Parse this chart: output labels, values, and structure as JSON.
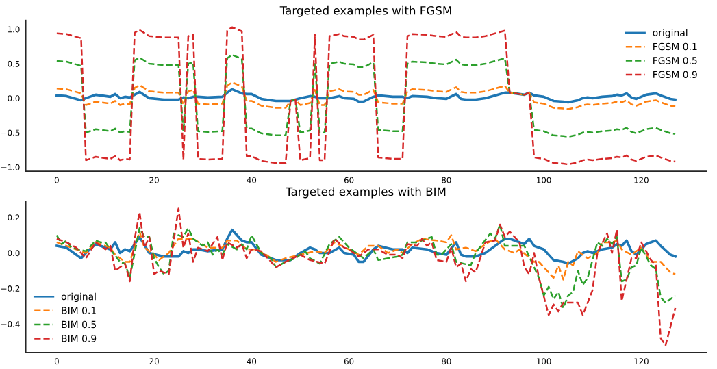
{
  "chart_data": [
    {
      "type": "line",
      "title": "Targeted examples with FGSM",
      "legend": "top right",
      "grid": false,
      "xlim": [
        -6.35,
        133.35
      ],
      "xticks": [
        0,
        20,
        40,
        60,
        80,
        100,
        120
      ],
      "ylim": [
        -1.06,
        1.13
      ],
      "yticks": [
        {
          "value": -1.0,
          "label": "−1.0"
        },
        {
          "value": -0.5,
          "label": "−0.5"
        },
        {
          "value": 0.0,
          "label": "0.0"
        },
        {
          "value": 0.5,
          "label": "0.5"
        },
        {
          "value": 1.0,
          "label": "1.0"
        }
      ],
      "x": [
        0,
        2,
        5,
        6,
        8,
        11,
        12,
        13,
        14,
        15,
        16,
        17,
        19,
        22,
        25,
        26,
        27,
        28,
        29,
        31,
        34,
        35,
        36,
        38,
        39,
        40,
        42,
        45,
        47,
        48,
        49,
        50,
        52,
        53,
        54,
        55,
        56,
        58,
        59,
        61,
        62,
        63,
        65,
        66,
        69,
        71,
        72,
        73,
        76,
        78,
        80,
        82,
        83,
        84,
        86,
        88,
        90,
        92,
        93,
        94,
        96,
        97,
        98,
        100,
        102,
        104,
        105,
        107,
        108,
        109,
        110,
        112,
        114,
        115,
        116,
        117,
        118,
        119,
        121,
        123,
        124,
        126,
        127
      ],
      "series": [
        {
          "name": "original",
          "color": "#1f77b4",
          "line_style": "solid",
          "values": [
            0.04,
            0.03,
            -0.03,
            0,
            0.05,
            0.02,
            0.06,
            0,
            0.02,
            0.01,
            0.05,
            0.09,
            0,
            -0.02,
            -0.02,
            0.01,
            0,
            0.02,
            0.02,
            0.01,
            0.02,
            0.08,
            0.13,
            0.07,
            0.06,
            0.06,
            -0.01,
            -0.04,
            -0.04,
            -0.04,
            -0.02,
            0,
            0.03,
            0.02,
            0,
            0,
            0,
            0.03,
            0,
            -0.01,
            -0.05,
            -0.05,
            0.02,
            0.04,
            0.02,
            0.02,
            0,
            0.03,
            0.02,
            0,
            -0.01,
            0.06,
            -0.01,
            -0.02,
            -0.02,
            0,
            0.04,
            0.08,
            0.08,
            0.07,
            0.05,
            0.08,
            0.04,
            0.02,
            -0.04,
            -0.05,
            -0.06,
            -0.03,
            0,
            0.01,
            0,
            0.02,
            0.03,
            0.05,
            0.04,
            0.07,
            0.01,
            -0.01,
            0.05,
            0.07,
            0.04,
            -0.01,
            -0.02
          ]
        },
        {
          "name": "FGSM 0.1",
          "color": "#ff7f0e",
          "line_style": "dashed",
          "values": [
            0.14,
            0.13,
            0.07,
            -0.1,
            -0.05,
            -0.08,
            -0.04,
            -0.1,
            -0.08,
            -0.09,
            0.15,
            0.19,
            0.1,
            0.08,
            0.08,
            -0.09,
            0.1,
            0.12,
            -0.08,
            -0.09,
            -0.08,
            0.18,
            0.23,
            0.17,
            -0.04,
            -0.04,
            -0.11,
            -0.14,
            -0.14,
            -0.04,
            -0.02,
            -0.1,
            -0.07,
            0.12,
            -0.1,
            -0.1,
            0.1,
            0.13,
            0.1,
            0.09,
            0.05,
            0.05,
            0.12,
            -0.06,
            -0.08,
            -0.08,
            0.1,
            0.13,
            0.12,
            0.1,
            0.09,
            0.16,
            0.09,
            0.08,
            0.08,
            0.1,
            0.14,
            0.18,
            0.08,
            0.07,
            0.05,
            0.08,
            -0.06,
            -0.08,
            -0.14,
            -0.15,
            -0.16,
            -0.13,
            -0.1,
            -0.09,
            -0.1,
            -0.08,
            -0.07,
            -0.05,
            -0.06,
            -0.03,
            -0.09,
            -0.11,
            -0.05,
            -0.03,
            -0.06,
            -0.11,
            -0.12
          ]
        },
        {
          "name": "FGSM 0.5",
          "color": "#2ca02c",
          "line_style": "dashed",
          "values": [
            0.54,
            0.53,
            0.47,
            -0.5,
            -0.45,
            -0.48,
            -0.44,
            -0.5,
            -0.48,
            -0.49,
            0.55,
            0.59,
            0.5,
            0.48,
            0.48,
            -0.49,
            0.5,
            0.52,
            -0.48,
            -0.49,
            -0.48,
            0.58,
            0.63,
            0.57,
            -0.44,
            -0.44,
            -0.51,
            -0.54,
            -0.54,
            -0.04,
            -0.02,
            -0.5,
            -0.47,
            0.52,
            -0.5,
            -0.5,
            0.5,
            0.53,
            0.5,
            0.49,
            0.45,
            0.45,
            0.52,
            -0.46,
            -0.48,
            -0.48,
            0.5,
            0.53,
            0.52,
            0.5,
            0.49,
            0.56,
            0.49,
            0.48,
            0.48,
            0.5,
            0.54,
            0.58,
            0.08,
            0.07,
            0.05,
            0.08,
            -0.46,
            -0.48,
            -0.54,
            -0.55,
            -0.56,
            -0.53,
            -0.5,
            -0.49,
            -0.5,
            -0.48,
            -0.47,
            -0.45,
            -0.46,
            -0.43,
            -0.49,
            -0.51,
            -0.45,
            -0.43,
            -0.46,
            -0.51,
            -0.52
          ]
        },
        {
          "name": "FGSM 0.9",
          "color": "#d62728",
          "line_style": "dashed",
          "values": [
            0.94,
            0.93,
            0.87,
            -0.9,
            -0.85,
            -0.88,
            -0.84,
            -0.9,
            -0.88,
            -0.89,
            0.95,
            0.99,
            0.9,
            0.88,
            0.88,
            -0.89,
            0.9,
            0.92,
            -0.88,
            -0.89,
            -0.88,
            0.98,
            1.03,
            0.97,
            -0.84,
            -0.84,
            -0.91,
            -0.94,
            -0.94,
            -0.04,
            -0.02,
            -0.9,
            -0.87,
            0.92,
            -0.9,
            -0.9,
            0.9,
            0.93,
            0.9,
            0.89,
            0.85,
            0.85,
            0.92,
            -0.86,
            -0.88,
            -0.88,
            0.9,
            0.93,
            0.92,
            0.9,
            0.89,
            0.96,
            0.89,
            0.88,
            0.88,
            0.9,
            0.94,
            0.98,
            0.08,
            0.07,
            0.05,
            0.08,
            -0.86,
            -0.88,
            -0.94,
            -0.95,
            -0.96,
            -0.93,
            -0.9,
            -0.89,
            -0.9,
            -0.88,
            -0.87,
            -0.85,
            -0.86,
            -0.83,
            -0.89,
            -0.91,
            -0.85,
            -0.83,
            -0.86,
            -0.91,
            -0.92
          ]
        }
      ]
    },
    {
      "type": "line",
      "title": "Targeted examples with BIM",
      "legend": "bottom left",
      "grid": false,
      "xlim": [
        -6.35,
        133.35
      ],
      "xticks": [
        0,
        20,
        40,
        60,
        80,
        100,
        120
      ],
      "ylim": [
        -0.56,
        0.29
      ],
      "yticks": [
        {
          "value": -0.4,
          "label": "−0.4"
        },
        {
          "value": -0.2,
          "label": "−0.2"
        },
        {
          "value": 0.0,
          "label": "0.0"
        },
        {
          "value": 0.2,
          "label": "0.2"
        }
      ],
      "series": [
        {
          "name": "original",
          "color": "#1f77b4",
          "line_style": "solid",
          "x": [
            0,
            2,
            5,
            6,
            8,
            11,
            12,
            13,
            14,
            15,
            16,
            17,
            19,
            22,
            25,
            26,
            27,
            28,
            29,
            31,
            34,
            35,
            36,
            38,
            39,
            40,
            42,
            45,
            47,
            48,
            49,
            50,
            52,
            53,
            54,
            55,
            56,
            58,
            59,
            61,
            62,
            63,
            65,
            66,
            69,
            71,
            72,
            73,
            76,
            78,
            80,
            82,
            83,
            84,
            86,
            88,
            90,
            92,
            93,
            94,
            96,
            97,
            98,
            100,
            102,
            104,
            105,
            107,
            108,
            109,
            110,
            112,
            114,
            115,
            116,
            117,
            118,
            119,
            121,
            123,
            124,
            126,
            127
          ],
          "values": [
            0.04,
            0.03,
            -0.03,
            0,
            0.05,
            0.02,
            0.06,
            0,
            0.02,
            0.01,
            0.05,
            0.09,
            0,
            -0.02,
            -0.02,
            0.01,
            0,
            0.02,
            0.02,
            0.01,
            0.02,
            0.08,
            0.13,
            0.07,
            0.06,
            0.06,
            -0.01,
            -0.04,
            -0.04,
            -0.04,
            -0.02,
            0,
            0.03,
            0.02,
            0,
            0,
            0,
            0.03,
            0,
            -0.01,
            -0.05,
            -0.05,
            0.02,
            0.04,
            0.02,
            0.02,
            0,
            0.03,
            0.02,
            0,
            -0.01,
            0.06,
            -0.01,
            -0.02,
            -0.02,
            0,
            0.04,
            0.08,
            0.08,
            0.07,
            0.05,
            0.08,
            0.04,
            0.02,
            -0.04,
            -0.05,
            -0.06,
            -0.03,
            0,
            0.01,
            0,
            0.02,
            0.03,
            0.05,
            0.04,
            0.07,
            0.01,
            -0.01,
            0.05,
            0.07,
            0.04,
            -0.01,
            -0.02
          ]
        },
        {
          "name": "BIM 0.1",
          "color": "#ff7f0e",
          "line_style": "dashed",
          "x": [
            0,
            2,
            4,
            6,
            8,
            10,
            11,
            12,
            14,
            15,
            17,
            18,
            20,
            21,
            23,
            25,
            28,
            31,
            34,
            35,
            37,
            39,
            41,
            43,
            45,
            47,
            50,
            53,
            55,
            57,
            60,
            62,
            64,
            66,
            68,
            70,
            71,
            73,
            75,
            78,
            80,
            81,
            82,
            84,
            86,
            88,
            90,
            92,
            94,
            95,
            98,
            99,
            100,
            102,
            103,
            104,
            105,
            106,
            107,
            109,
            111,
            112,
            114,
            115,
            116,
            118,
            120,
            122,
            124,
            126,
            127
          ],
          "values": [
            0.06,
            0.04,
            0.02,
            0,
            0.06,
            0.04,
            0.03,
            -0.01,
            -0.05,
            -0.05,
            0.12,
            0.03,
            -0.01,
            -0.04,
            0,
            0.08,
            0.08,
            0.03,
            0.03,
            0.07,
            0.07,
            0.02,
            0.02,
            -0.01,
            -0.05,
            -0.03,
            -0.01,
            0.01,
            0,
            0.06,
            0.02,
            -0.01,
            0.04,
            0.04,
            0,
            0.02,
            0,
            0.05,
            0.08,
            0.07,
            0.06,
            0.1,
            0.02,
            0.03,
            0.01,
            0.05,
            0.08,
            0.02,
            0,
            0.02,
            -0.05,
            -0.05,
            -0.08,
            -0.14,
            -0.07,
            -0.15,
            -0.05,
            -0.07,
            0.01,
            -0.03,
            0,
            0.06,
            0.06,
            0.07,
            0.02,
            -0.01,
            0.03,
            -0.05,
            -0.05,
            -0.11,
            -0.12
          ]
        },
        {
          "name": "BIM 0.5",
          "color": "#2ca02c",
          "line_style": "dashed",
          "x": [
            0,
            1,
            2,
            3,
            6,
            8,
            9,
            10,
            11,
            13,
            14,
            15,
            17,
            18,
            19,
            20,
            21,
            22,
            23,
            24,
            26,
            27,
            28,
            30,
            31,
            32,
            33,
            34,
            35,
            37,
            38,
            39,
            40,
            42,
            44,
            45,
            47,
            49,
            51,
            52,
            54,
            56,
            58,
            60,
            62,
            63,
            65,
            66,
            68,
            70,
            71,
            72,
            74,
            77,
            78,
            79,
            81,
            82,
            85,
            86,
            89,
            90,
            91,
            92,
            96,
            97,
            99,
            100,
            101,
            102,
            103,
            104,
            105,
            106,
            107,
            108,
            109,
            111,
            112,
            113,
            114,
            115,
            116,
            117,
            118,
            119,
            120,
            122,
            123,
            124,
            125,
            127
          ],
          "values": [
            0.1,
            0.05,
            0.07,
            0.03,
            0.01,
            0.07,
            0.06,
            0.06,
            0.02,
            -0.05,
            -0.06,
            -0.14,
            0.14,
            0.09,
            0.09,
            -0.03,
            -0.08,
            -0.12,
            -0.1,
            0.11,
            0.09,
            0.14,
            0.08,
            0.04,
            0.06,
            -0.01,
            0.02,
            -0.01,
            0.05,
            0.02,
            0.05,
            0.02,
            0.1,
            0,
            -0.03,
            -0.08,
            -0.05,
            -0.03,
            0.01,
            -0.03,
            -0.06,
            0.05,
            0.09,
            0.03,
            -0.01,
            -0.03,
            0.02,
            -0.04,
            -0.03,
            -0.02,
            -0.01,
            0.06,
            0.06,
            0.09,
            -0.01,
            -0.01,
            0.05,
            -0.05,
            -0.07,
            0,
            0.11,
            0.08,
            0.16,
            0.04,
            0.04,
            -0.02,
            -0.14,
            -0.24,
            -0.19,
            -0.26,
            -0.22,
            -0.31,
            -0.24,
            -0.22,
            -0.1,
            -0.18,
            -0.14,
            0.06,
            0.04,
            0.08,
            0.05,
            0.09,
            -0.16,
            -0.15,
            -0.08,
            -0.07,
            0.03,
            -0.07,
            -0.09,
            -0.25,
            -0.28,
            -0.24
          ]
        },
        {
          "name": "BIM 0.9",
          "color": "#d62728",
          "line_style": "dashed",
          "x": [
            0,
            2,
            4,
            6,
            8,
            10,
            11,
            12,
            14,
            15,
            16,
            17,
            18,
            19,
            20,
            21,
            23,
            25,
            26,
            27,
            28,
            29,
            31,
            33,
            34,
            35,
            37,
            38,
            39,
            40,
            42,
            44,
            45,
            47,
            50,
            52,
            55,
            57,
            59,
            60,
            62,
            64,
            66,
            68,
            70,
            71,
            72,
            74,
            75,
            76,
            77,
            78,
            80,
            81,
            82,
            83,
            84,
            85,
            86,
            88,
            90,
            91,
            92,
            93,
            95,
            96,
            97,
            98,
            99,
            101,
            102,
            103,
            104,
            107,
            108,
            110,
            111,
            113,
            114,
            115,
            116,
            118,
            119,
            120,
            122,
            123,
            124,
            125,
            127
          ],
          "values": [
            0.08,
            0.06,
            0.03,
            -0.03,
            0.06,
            0.02,
            0.04,
            -0.1,
            -0.06,
            -0.16,
            0.08,
            0.23,
            0.03,
            0.09,
            -0.12,
            -0.1,
            -0.12,
            0.25,
            0.03,
            0.11,
            -0.05,
            0.03,
            0.01,
            0.09,
            -0.04,
            0.06,
            0.03,
            0.05,
            -0.03,
            0.02,
            0.01,
            -0.05,
            -0.08,
            -0.05,
            -0.01,
            -0.04,
            -0.06,
            0.08,
            0.03,
            0.02,
            -0.02,
            0.02,
            0.02,
            -0.01,
            -0.01,
            -0.03,
            0.05,
            0.04,
            0.08,
            0.04,
            0.06,
            -0.04,
            -0.05,
            0.03,
            -0.08,
            -0.06,
            -0.16,
            -0.09,
            -0.11,
            0.06,
            0.07,
            0.16,
            0.09,
            0.12,
            0.06,
            -0.08,
            -0.12,
            0,
            -0.14,
            -0.35,
            -0.29,
            -0.33,
            -0.28,
            -0.28,
            -0.35,
            -0.21,
            0,
            0.11,
            0,
            0.13,
            -0.27,
            -0.03,
            -0.03,
            0.06,
            -0.04,
            -0.07,
            -0.48,
            -0.52,
            -0.31
          ]
        }
      ]
    }
  ]
}
